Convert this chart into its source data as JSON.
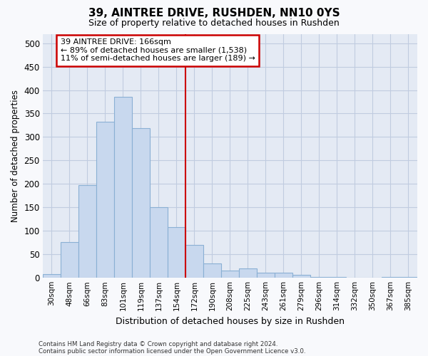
{
  "title": "39, AINTREE DRIVE, RUSHDEN, NN10 0YS",
  "subtitle": "Size of property relative to detached houses in Rushden",
  "xlabel": "Distribution of detached houses by size in Rushden",
  "ylabel": "Number of detached properties",
  "bar_labels": [
    "30sqm",
    "48sqm",
    "66sqm",
    "83sqm",
    "101sqm",
    "119sqm",
    "137sqm",
    "154sqm",
    "172sqm",
    "190sqm",
    "208sqm",
    "225sqm",
    "243sqm",
    "261sqm",
    "279sqm",
    "296sqm",
    "314sqm",
    "332sqm",
    "350sqm",
    "367sqm",
    "385sqm"
  ],
  "bar_values": [
    8,
    75,
    197,
    332,
    385,
    318,
    150,
    108,
    70,
    30,
    15,
    20,
    10,
    11,
    6,
    2,
    1,
    0,
    0,
    1,
    2
  ],
  "bar_fill_color": "#c8d8ee",
  "bar_edge_color": "#8ab0d4",
  "vline_color": "#cc0000",
  "annotation_line1": "39 AINTREE DRIVE: 166sqm",
  "annotation_line2": "← 89% of detached houses are smaller (1,538)",
  "annotation_line3": "11% of semi-detached houses are larger (189) →",
  "ann_box_edge_color": "#cc0000",
  "ylim": [
    0,
    520
  ],
  "yticks": [
    0,
    50,
    100,
    150,
    200,
    250,
    300,
    350,
    400,
    450,
    500
  ],
  "grid_color": "#c0cce0",
  "plot_bg_color": "#e4eaf4",
  "fig_bg_color": "#f8f9fc",
  "footer_line1": "Contains HM Land Registry data © Crown copyright and database right 2024.",
  "footer_line2": "Contains public sector information licensed under the Open Government Licence v3.0."
}
